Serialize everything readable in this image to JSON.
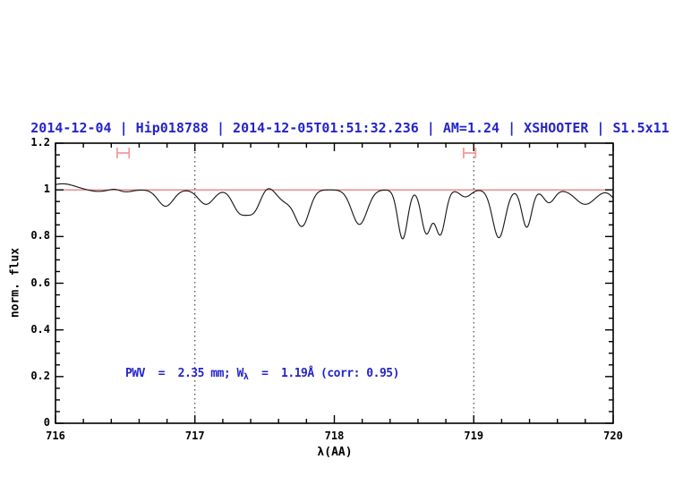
{
  "title": {
    "text": "2014-12-04 | Hip018788 | 2014-12-05T01:51:32.236 | AM=1.24 | XSHOOTER | S1.5x11",
    "color": "#2424cc"
  },
  "annotation": {
    "full": "PWV = 2.35 mm; Wλ = 1.19Å (corr: 0.95)",
    "prefix": "PWV  =  2.35 mm; W",
    "subscript": "λ",
    "suffix": "  =  1.19Å (corr: 0.95)",
    "color": "#2424cc"
  },
  "axes": {
    "xlabel": "λ(AA)",
    "ylabel": "norm. flux",
    "x_ticks": [
      "716",
      "717",
      "718",
      "719",
      "720"
    ],
    "y_ticks": [
      "0",
      "0.2",
      "0.4",
      "0.6",
      "0.8",
      "1",
      "1.2"
    ],
    "xlim": [
      716,
      720
    ],
    "ylim": [
      0,
      1.2
    ],
    "x_minor_step": 0.2,
    "y_minor_step": 0.05
  },
  "reference_line": {
    "y": 1.0,
    "color": "#e26868"
  },
  "dotted_lines": {
    "x": [
      717,
      719
    ],
    "color": "#222222"
  },
  "range_markers": {
    "centers": [
      716.485,
      718.97
    ],
    "half_width": 0.043,
    "y": 1.158,
    "color": "#f29c9c"
  },
  "chart_data": {
    "type": "line",
    "title": "2014-12-04 | Hip018788 | 2014-12-05T01:51:32.236 | AM=1.24 | XSHOOTER | S1.5x11",
    "xlabel": "λ(AA)",
    "ylabel": "norm. flux",
    "xlim": [
      716,
      720
    ],
    "ylim": [
      0,
      1.2
    ],
    "grid": false,
    "description": "Continuum-normalized telluric absorption spectrum; red reference line at flux 1.0; dotted guides at 717 and 719 AA; PWV=2.35 mm, W_lambda=1.19 A, corr=0.95",
    "continuum": 1.0,
    "start_excess": {
      "center": 716.05,
      "amplitude": 0.026,
      "sigma": 0.09
    },
    "absorption_lines": [
      [
        716.3,
        0.007,
        0.06
      ],
      [
        716.5,
        0.009,
        0.05
      ],
      [
        716.79,
        0.07,
        0.055
      ],
      [
        717.08,
        0.062,
        0.055
      ],
      [
        717.32,
        0.09,
        0.05
      ],
      [
        717.42,
        0.09,
        0.05
      ],
      [
        717.65,
        0.048,
        0.06
      ],
      [
        717.77,
        0.15,
        0.05
      ],
      [
        718.18,
        0.148,
        0.055
      ],
      [
        718.49,
        0.21,
        0.035
      ],
      [
        718.66,
        0.185,
        0.036
      ],
      [
        718.76,
        0.19,
        0.036
      ],
      [
        718.94,
        0.03,
        0.04
      ],
      [
        719.18,
        0.205,
        0.045
      ],
      [
        719.38,
        0.16,
        0.035
      ],
      [
        719.54,
        0.055,
        0.04
      ],
      [
        719.8,
        0.062,
        0.07
      ],
      [
        720.04,
        0.05,
        0.045
      ]
    ],
    "emission_bumps": [
      [
        716.43,
        0.006,
        0.035
      ],
      [
        717.52,
        0.02,
        0.045
      ]
    ],
    "key_points": [
      [
        716.0,
        1.025
      ],
      [
        716.2,
        1.0
      ],
      [
        716.43,
        1.005
      ],
      [
        716.5,
        0.995
      ],
      [
        716.79,
        0.93
      ],
      [
        716.92,
        1.0
      ],
      [
        717.08,
        0.94
      ],
      [
        717.19,
        0.99
      ],
      [
        717.37,
        0.895
      ],
      [
        717.52,
        1.01
      ],
      [
        717.65,
        0.95
      ],
      [
        717.77,
        0.85
      ],
      [
        718.03,
        1.0
      ],
      [
        718.18,
        0.855
      ],
      [
        718.35,
        0.99
      ],
      [
        718.49,
        0.79
      ],
      [
        718.58,
        0.977
      ],
      [
        718.66,
        0.81
      ],
      [
        718.72,
        0.845
      ],
      [
        718.76,
        0.81
      ],
      [
        718.9,
        0.99
      ],
      [
        719.0,
        1.0
      ],
      [
        719.18,
        0.8
      ],
      [
        719.27,
        0.97
      ],
      [
        719.38,
        0.84
      ],
      [
        719.47,
        0.975
      ],
      [
        719.54,
        0.945
      ],
      [
        719.66,
        0.985
      ],
      [
        719.8,
        0.94
      ],
      [
        719.95,
        0.985
      ],
      [
        720.0,
        0.965
      ]
    ],
    "colors": {
      "curve": "#1b1b1b",
      "frame": "#000000"
    }
  }
}
